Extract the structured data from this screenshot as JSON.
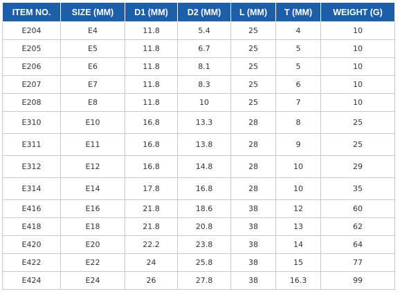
{
  "table": {
    "header": [
      "ITEM NO.",
      "SIZE (MM)",
      "D1 (MM)",
      "D2 (MM)",
      "L (MM)",
      "T (MM)",
      "WEIGHT (G)"
    ],
    "rows": [
      [
        "E204",
        "E4",
        "11.8",
        "5.4",
        "25",
        "4",
        "10"
      ],
      [
        "E205",
        "E5",
        "11.8",
        "6.7",
        "25",
        "5",
        "10"
      ],
      [
        "E206",
        "E6",
        "11.8",
        "8.1",
        "25",
        "5",
        "10"
      ],
      [
        "E207",
        "E7",
        "11.8",
        "8.3",
        "25",
        "6",
        "10"
      ],
      [
        "E208",
        "E8",
        "11.8",
        "10",
        "25",
        "7",
        "10"
      ],
      [
        "E310",
        "E10",
        "16.8",
        "13.3",
        "28",
        "8",
        "25"
      ],
      [
        "E311",
        "E11",
        "16.8",
        "13.8",
        "28",
        "9",
        "25"
      ],
      [
        "E312",
        "E12",
        "16.8",
        "14.8",
        "28",
        "10",
        "29"
      ],
      [
        "E314",
        "E14",
        "17.8",
        "16.8",
        "28",
        "10",
        "35"
      ],
      [
        "E416",
        "E16",
        "21.8",
        "18.6",
        "38",
        "12",
        "60"
      ],
      [
        "E418",
        "E18",
        "21.8",
        "20.8",
        "38",
        "13",
        "62"
      ],
      [
        "E420",
        "E20",
        "22.2",
        "23.8",
        "38",
        "14",
        "64"
      ],
      [
        "E422",
        "E22",
        "24",
        "25.8",
        "38",
        "15",
        "77"
      ],
      [
        "E424",
        "E24",
        "26",
        "27.8",
        "38",
        "16.3",
        "99"
      ]
    ]
  }
}
